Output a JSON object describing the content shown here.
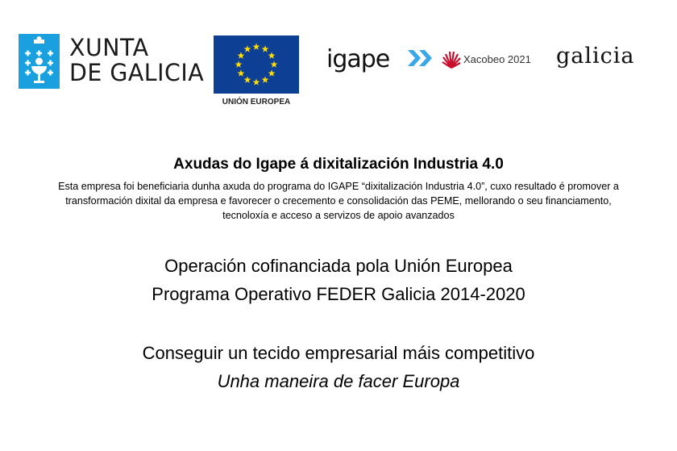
{
  "logos": {
    "xunta": [
      "XUNTA",
      "DE GALICIA"
    ],
    "eu_label": "UNIÓN EUROPEA",
    "igape": "igape",
    "xacobeo": "Xacobeo 2021",
    "galicia": "galicia"
  },
  "colors": {
    "xunta_blue": "#1aa0df",
    "eu_blue": "#0d3f94",
    "eu_star": "#ffdd00",
    "igape_arrow": "#3aa7e6",
    "xacobeo_red": "#c8102e"
  },
  "content": {
    "title": "Axudas do Igape á dixitalización Industria 4.0",
    "description": "Esta empresa foi beneficiaria dunha axuda do programa do IGAPE “dixitalización Industria 4.0”, cuxo resultado é promover a transformación dixital da empresa e favorecer o crecemento e consolidación das PEME, mellorando o seu financiamento, tecnoloxía e acceso a servizos de apoio avanzados",
    "operation_line1": "Operación cofinanciada pola Unión Europea",
    "operation_line2": "Programa Operativo FEDER Galicia 2014-2020",
    "slogan_line1": "Conseguir un tecido empresarial máis competitivo",
    "slogan_line2": "Unha maneira de facer Europa"
  }
}
